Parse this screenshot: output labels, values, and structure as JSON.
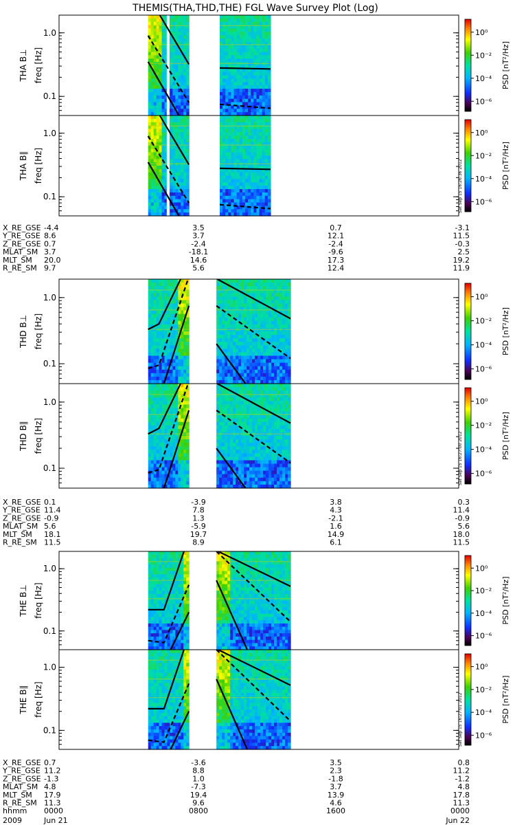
{
  "title": "THEMIS(THA,THD,THE) FGL Wave Survey Plot (Log)",
  "colorbar": {
    "label": "PSD [nT²/Hz]",
    "ticks": [
      "10⁰",
      "10⁻²",
      "10⁻⁴",
      "10⁻⁶"
    ],
    "side_stamps": [
      "Sat Sep 15 16:26:36 2012",
      "Sat Sep 15 16:27:00 2012",
      "Sat Sep 15 16:27:01 2012"
    ]
  },
  "chart_data": {
    "type": "heatmap",
    "x_range_hours": [
      0,
      24
    ],
    "y_axis": {
      "label": "freq [Hz]",
      "scale": "log",
      "ylim": [
        0.05,
        1.9
      ],
      "ticks": [
        0.1,
        1.0
      ],
      "tick_labels": [
        "0.1",
        "1.0"
      ]
    },
    "z_axis": {
      "label": "PSD [nT²/Hz]",
      "scale": "log",
      "zlim": [
        -7,
        1
      ]
    },
    "panels": [
      {
        "probe": "THA",
        "component": "B⊥",
        "ylabel": "THA B⊥",
        "data_intervals": [
          [
            5.35,
            7.8
          ],
          [
            9.65,
            12.7
          ]
        ],
        "gap_line_hour": 6.55,
        "bright_band": [
          5.35,
          6.2
        ],
        "lines": {
          "solid_upper": [
            [
              6.05,
              1.9
            ],
            [
              7.8,
              0.32
            ]
          ],
          "dashed": [
            [
              5.35,
              0.9
            ],
            [
              7.8,
              0.08
            ]
          ],
          "solid_lower": [
            [
              5.35,
              0.35
            ],
            [
              7.2,
              0.05
            ]
          ],
          "alt_solid": [
            [
              9.65,
              0.28
            ],
            [
              12.7,
              0.27
            ]
          ],
          "alt_dashed": [
            [
              9.65,
              0.075
            ],
            [
              12.7,
              0.065
            ]
          ]
        }
      },
      {
        "probe": "THA",
        "component": "B∥",
        "ylabel": "THA B∥",
        "data_intervals": [
          [
            5.35,
            7.8
          ],
          [
            9.65,
            12.7
          ]
        ],
        "gap_line_hour": 6.55,
        "bright_band": [
          5.35,
          6.2
        ],
        "lines": {
          "solid_upper": [
            [
              6.05,
              1.9
            ],
            [
              7.8,
              0.32
            ]
          ],
          "dashed": [
            [
              5.35,
              0.9
            ],
            [
              7.8,
              0.08
            ]
          ],
          "solid_lower": [
            [
              5.35,
              0.35
            ],
            [
              7.2,
              0.05
            ]
          ],
          "alt_solid": [
            [
              9.65,
              0.28
            ],
            [
              12.7,
              0.27
            ]
          ],
          "alt_dashed": [
            [
              9.65,
              0.075
            ],
            [
              12.7,
              0.065
            ]
          ]
        }
      },
      {
        "probe": "THD",
        "component": "B⊥",
        "ylabel": "THD B⊥",
        "data_intervals": [
          [
            5.35,
            7.8
          ],
          [
            9.45,
            13.9
          ]
        ],
        "bright_band": [
          7.1,
          7.8
        ],
        "lines": {
          "solid_a": [
            [
              5.35,
              0.33
            ],
            [
              6.0,
              0.4
            ],
            [
              7.3,
              1.9
            ]
          ],
          "dashed_a": [
            [
              5.35,
              0.085
            ],
            [
              6.0,
              0.095
            ],
            [
              7.75,
              1.9
            ]
          ],
          "solid_b": [
            [
              6.3,
              0.05
            ],
            [
              7.8,
              0.75
            ]
          ],
          "solid_c": [
            [
              9.5,
              1.9
            ],
            [
              13.9,
              0.48
            ]
          ],
          "dashed_c": [
            [
              9.45,
              0.75
            ],
            [
              13.9,
              0.12
            ]
          ],
          "lower_c": [
            [
              9.45,
              0.2
            ],
            [
              11.2,
              0.05
            ]
          ]
        }
      },
      {
        "probe": "THD",
        "component": "B∥",
        "ylabel": "THD B∥",
        "data_intervals": [
          [
            5.35,
            7.8
          ],
          [
            9.45,
            13.9
          ]
        ],
        "bright_band": [
          7.1,
          7.8
        ],
        "lines": {
          "solid_a": [
            [
              5.35,
              0.33
            ],
            [
              6.0,
              0.4
            ],
            [
              7.3,
              1.9
            ]
          ],
          "dashed_a": [
            [
              5.35,
              0.085
            ],
            [
              6.0,
              0.095
            ],
            [
              7.75,
              1.9
            ]
          ],
          "solid_b": [
            [
              6.3,
              0.05
            ],
            [
              7.8,
              0.75
            ]
          ],
          "solid_c": [
            [
              9.5,
              1.9
            ],
            [
              13.9,
              0.48
            ]
          ],
          "dashed_c": [
            [
              9.45,
              0.75
            ],
            [
              13.9,
              0.12
            ]
          ],
          "lower_c": [
            [
              9.45,
              0.2
            ],
            [
              11.2,
              0.05
            ]
          ]
        }
      },
      {
        "probe": "THE",
        "component": "B⊥",
        "ylabel": "THE B⊥",
        "data_intervals": [
          [
            5.35,
            7.8
          ],
          [
            9.45,
            13.9
          ]
        ],
        "bright_band": [
          7.5,
          7.8
        ],
        "bright_band_2": [
          9.45,
          10.3
        ],
        "lines": {
          "solid_a": [
            [
              5.35,
              0.22
            ],
            [
              6.3,
              0.22
            ],
            [
              7.5,
              1.9
            ]
          ],
          "dashed_a": [
            [
              5.35,
              0.07
            ],
            [
              6.3,
              0.065
            ],
            [
              7.8,
              0.55
            ]
          ],
          "solid_b": [
            [
              6.7,
              0.05
            ],
            [
              7.8,
              0.2
            ]
          ],
          "solid_c": [
            [
              9.55,
              1.9
            ],
            [
              13.9,
              0.52
            ]
          ],
          "dashed_c": [
            [
              9.45,
              1.9
            ],
            [
              13.9,
              0.14
            ]
          ],
          "lower_c": [
            [
              9.45,
              0.65
            ],
            [
              11.3,
              0.05
            ]
          ]
        }
      },
      {
        "probe": "THE",
        "component": "B∥",
        "ylabel": "THE B∥",
        "data_intervals": [
          [
            5.35,
            7.8
          ],
          [
            9.45,
            13.9
          ]
        ],
        "bright_band": [
          7.55,
          7.8
        ],
        "bright_band_2": [
          9.45,
          10.3
        ],
        "lines": {
          "solid_a": [
            [
              5.35,
              0.22
            ],
            [
              6.3,
              0.22
            ],
            [
              7.5,
              1.9
            ]
          ],
          "dashed_a": [
            [
              5.35,
              0.07
            ],
            [
              6.3,
              0.065
            ],
            [
              7.8,
              0.55
            ]
          ],
          "solid_b": [
            [
              6.7,
              0.05
            ],
            [
              7.8,
              0.2
            ]
          ],
          "solid_c": [
            [
              9.55,
              1.9
            ],
            [
              13.9,
              0.52
            ]
          ],
          "dashed_c": [
            [
              9.45,
              1.9
            ],
            [
              13.9,
              0.14
            ]
          ],
          "lower_c": [
            [
              9.45,
              0.65
            ],
            [
              11.3,
              0.05
            ]
          ]
        }
      }
    ],
    "ephemeris": [
      {
        "probe": "THA",
        "rows": [
          {
            "name": "X_RE_GSE",
            "values": [
              "-4.4",
              "3.5",
              "0.7",
              "-3.1"
            ]
          },
          {
            "name": "Y_RE_GSE",
            "values": [
              "8.6",
              "3.7",
              "12.1",
              "11.5"
            ]
          },
          {
            "name": "Z_RE_GSE",
            "values": [
              "0.7",
              "-2.4",
              "-2.4",
              "-0.3"
            ]
          },
          {
            "name": "MLAT_SM",
            "values": [
              "3.7",
              "-18.1",
              "-9.6",
              "2.5"
            ]
          },
          {
            "name": "MLT_SM",
            "values": [
              "20.0",
              "14.6",
              "17.3",
              "19.2"
            ]
          },
          {
            "name": "R_RE_SM",
            "values": [
              "9.7",
              "5.6",
              "12.4",
              "11.9"
            ]
          }
        ]
      },
      {
        "probe": "THD",
        "rows": [
          {
            "name": "X_RE_GSE",
            "values": [
              "0.1",
              "-3.9",
              "3.8",
              "0.3"
            ]
          },
          {
            "name": "Y_RE_GSE",
            "values": [
              "11.4",
              "7.8",
              "4.3",
              "11.4"
            ]
          },
          {
            "name": "Z_RE_GSE",
            "values": [
              "-0.9",
              "1.3",
              "-2.1",
              "-0.9"
            ]
          },
          {
            "name": "MLAT_SM",
            "values": [
              "5.6",
              "-5.9",
              "1.6",
              "5.6"
            ]
          },
          {
            "name": "MLT_SM",
            "values": [
              "18.1",
              "19.7",
              "14.9",
              "18.0"
            ]
          },
          {
            "name": "R_RE_SM",
            "values": [
              "11.5",
              "8.9",
              "6.1",
              "11.5"
            ]
          }
        ]
      },
      {
        "probe": "THE",
        "rows": [
          {
            "name": "X_RE_GSE",
            "values": [
              "0.7",
              "-3.6",
              "3.5",
              "0.8"
            ]
          },
          {
            "name": "Y_RE_GSE",
            "values": [
              "11.2",
              "8.8",
              "2.3",
              "11.2"
            ]
          },
          {
            "name": "Z_RE_GSE",
            "values": [
              "-1.3",
              "1.0",
              "-1.8",
              "-1.2"
            ]
          },
          {
            "name": "MLAT_SM",
            "values": [
              "4.8",
              "-7.3",
              "3.7",
              "4.8"
            ]
          },
          {
            "name": "MLT_SM",
            "values": [
              "17.9",
              "19.4",
              "13.9",
              "17.8"
            ]
          },
          {
            "name": "R_RE_SM",
            "values": [
              "11.3",
              "9.6",
              "4.6",
              "11.3"
            ]
          },
          {
            "name": "hhmm",
            "values": [
              "0000",
              "0800",
              "1600",
              "0000"
            ]
          }
        ]
      }
    ],
    "date_labels": {
      "year": "2009",
      "start": "Jun 21",
      "end": "Jun 22"
    }
  }
}
